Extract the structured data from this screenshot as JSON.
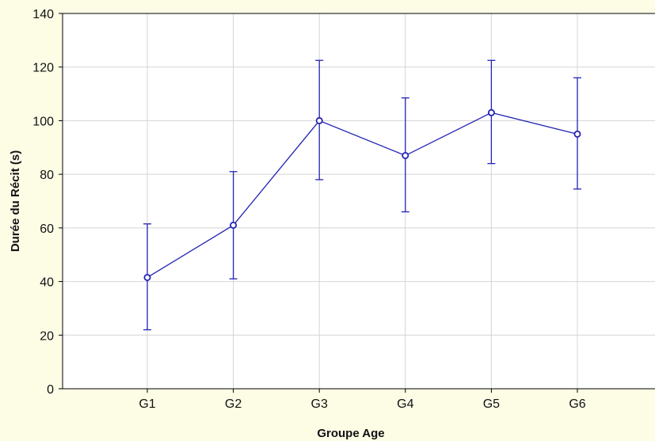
{
  "chart_data": {
    "type": "line",
    "title": "",
    "xlabel": "Groupe Age",
    "ylabel": "Durée du Récit (s)",
    "categories": [
      "G1",
      "G2",
      "G3",
      "G4",
      "G5",
      "G6"
    ],
    "series": [
      {
        "values": [
          41.5,
          61,
          100,
          87,
          103,
          95
        ],
        "error_low": [
          22,
          41,
          78,
          66,
          84,
          74.5
        ],
        "error_high": [
          61.5,
          81,
          122.5,
          108.5,
          122.5,
          116
        ],
        "color": "#2323b4"
      }
    ],
    "ylim": [
      0,
      140
    ],
    "yticks": [
      0,
      20,
      40,
      60,
      80,
      100,
      120,
      140
    ],
    "grid": true,
    "legend": "none"
  },
  "colors": {
    "background": "#fdfde6",
    "plot_background": "#ffffff",
    "grid": "#d4d4d4",
    "axis": "#000000",
    "series": "#2323b4"
  }
}
